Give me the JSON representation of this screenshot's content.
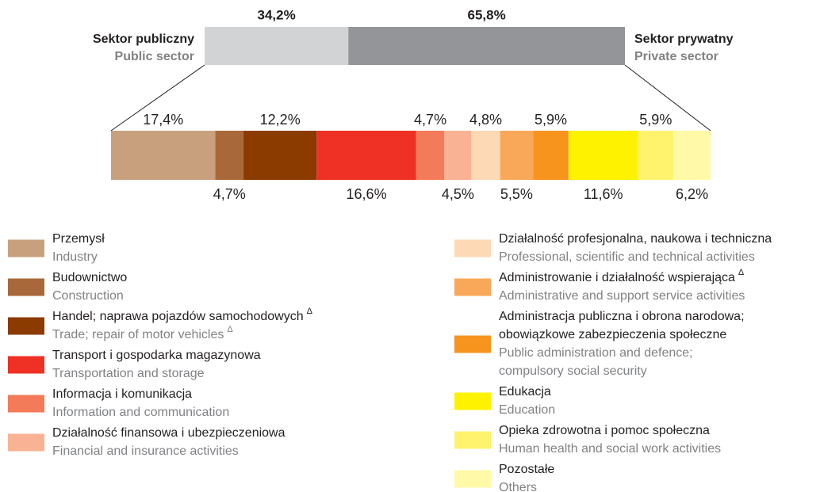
{
  "chart_data": [
    {
      "type": "stacked-bar",
      "xlim": [
        0,
        100
      ],
      "series": [
        {
          "name": [
            "Sektor publiczny"
          ],
          "name_en": [
            "Public sector"
          ],
          "color": "#d1d3d4",
          "values": [
            34.2
          ],
          "value_labels": [
            "34,2%"
          ]
        },
        {
          "name": [
            "Sektor prywatny"
          ],
          "name_en": [
            "Private sector"
          ],
          "color": "#939598",
          "values": [
            65.8
          ],
          "value_labels": [
            "65,8%"
          ]
        }
      ]
    },
    {
      "type": "stacked-bar",
      "xlim": [
        0,
        100
      ],
      "series": [
        {
          "name": [
            "Przemysł"
          ],
          "name_en": [
            "Industry"
          ],
          "color": "#c9a07e",
          "values": [
            17.4
          ],
          "value_labels": [
            "17,4%"
          ]
        },
        {
          "name": [
            "Budownictwo"
          ],
          "name_en": [
            "Construction"
          ],
          "color": "#a8683a",
          "values": [
            4.7
          ],
          "value_labels": [
            "4,7%"
          ]
        },
        {
          "name": [
            "Handel; naprawa pojazdów samochodowych"
          ],
          "name_sup": "Δ",
          "name_en": [
            "Trade; repair of motor vehicles"
          ],
          "name_en_sup": "Δ",
          "color": "#8b3a00",
          "values": [
            12.2
          ],
          "value_labels": [
            "12,2%"
          ]
        },
        {
          "name": [
            "Transport i gospodarka magazynowa"
          ],
          "name_en": [
            "Transportation and storage"
          ],
          "color": "#ee3124",
          "values": [
            16.6
          ],
          "value_labels": [
            "16,6%"
          ]
        },
        {
          "name": [
            "Informacja i komunikacja"
          ],
          "name_en": [
            "Information and communication"
          ],
          "color": "#f47b5a",
          "values": [
            4.7
          ],
          "value_labels": [
            "4,7%"
          ]
        },
        {
          "name": [
            "Działalność finansowa i ubezpieczeniowa"
          ],
          "name_en": [
            "Financial and insurance activities"
          ],
          "color": "#f9b294",
          "values": [
            4.5
          ],
          "value_labels": [
            "4,5%"
          ]
        },
        {
          "name": [
            "Działalność profesjonalna, naukowa i techniczna"
          ],
          "name_en": [
            "Professional, scientific and technical activities"
          ],
          "color": "#fdd9b5",
          "values": [
            4.8
          ],
          "value_labels": [
            "4,8%"
          ]
        },
        {
          "name": [
            "Administrowanie i działalność wspierająca"
          ],
          "name_sup": "Δ",
          "name_en": [
            "Administrative and support service activities"
          ],
          "color": "#f9a85a",
          "values": [
            5.5
          ],
          "value_labels": [
            "5,5%"
          ]
        },
        {
          "name": [
            "Administracja publiczna i obrona narodowa;",
            "obowiązkowe zabezpieczenia społeczne"
          ],
          "name_en": [
            "Public administration and defence;",
            "compulsory social security"
          ],
          "color": "#f7941d",
          "values": [
            5.9
          ],
          "value_labels": [
            "5,9%"
          ]
        },
        {
          "name": [
            "Edukacja"
          ],
          "name_en": [
            "Education"
          ],
          "color": "#fff200",
          "values": [
            11.6
          ],
          "value_labels": [
            "11,6%"
          ]
        },
        {
          "name": [
            "Opieka zdrowotna i pomoc społeczna"
          ],
          "name_en": [
            "Human health and social work activities"
          ],
          "color": "#fff36d",
          "values": [
            5.9
          ],
          "value_labels": [
            "5,9%"
          ]
        },
        {
          "name": [
            "Pozostałe"
          ],
          "name_en": [
            "Others"
          ],
          "color": "#fff9a8",
          "values": [
            6.2
          ],
          "value_labels": [
            "6,2%"
          ]
        }
      ]
    }
  ]
}
